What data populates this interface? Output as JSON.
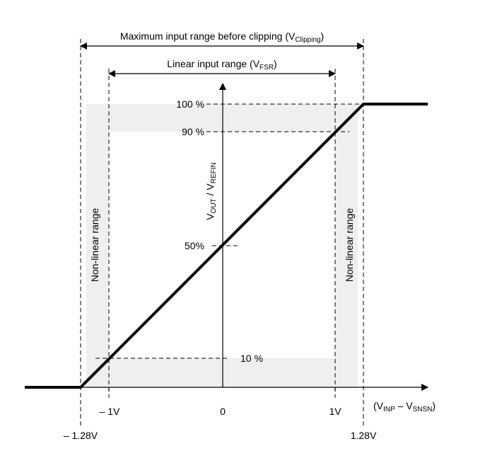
{
  "clipping_range": {
    "text": "Maximum input range before clipping (V",
    "sub": "Clipping",
    "end": ")"
  },
  "linear_range": {
    "text": "Linear input range (V",
    "sub": "FSR",
    "end": ")"
  },
  "y_levels": [
    "100 %",
    "90 %",
    "50%",
    "10 %"
  ],
  "y_axis_label": {
    "v1": "V",
    "sub1": "OUT",
    "mid": " / V",
    "sub2": "REFIN"
  },
  "x_axis_label": {
    "v1": "(V",
    "sub1": "INP",
    "mid": " – V",
    "sub2": "SNSN",
    "end": ")"
  },
  "nonlinear_left": "Non-linear range",
  "nonlinear_right": "Non-linear range",
  "x_ticks": [
    "– 1V",
    "0",
    "1V"
  ],
  "x_limits": [
    "– 1.28V",
    "1.28V"
  ]
}
